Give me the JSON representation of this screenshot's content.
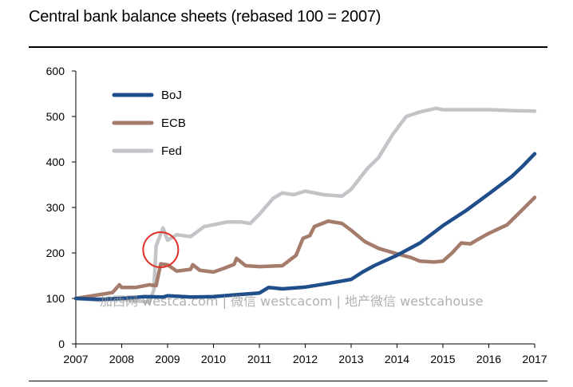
{
  "title": "Central bank balance sheets (rebased 100 = 2007)",
  "watermark": "加西网 westca.com | 微信 westcacom | 地产微信 westcahouse",
  "chart_data": {
    "type": "line",
    "title": "Central bank balance sheets (rebased 100 = 2007)",
    "xlabel": "",
    "ylabel": "",
    "xlim": [
      2007,
      2017
    ],
    "ylim": [
      0,
      600
    ],
    "yticks": [
      0,
      100,
      200,
      300,
      400,
      500,
      600
    ],
    "xticks": [
      "2007",
      "2008",
      "2009",
      "2010",
      "2011",
      "2012",
      "2013",
      "2014",
      "2015",
      "2016",
      "2017"
    ],
    "grid": false,
    "legend": "top-left",
    "annotation": {
      "type": "circle",
      "x": 2008.85,
      "y": 200,
      "color": "#e0312b"
    },
    "series": [
      {
        "name": "BoJ",
        "color": "#1f4e8a",
        "points": [
          [
            2007,
            100
          ],
          [
            2007.5,
            98
          ],
          [
            2008,
            100
          ],
          [
            2008.5,
            104
          ],
          [
            2008.9,
            103
          ],
          [
            2009,
            106
          ],
          [
            2009.5,
            103
          ],
          [
            2010,
            104
          ],
          [
            2010.5,
            108
          ],
          [
            2011,
            112
          ],
          [
            2011.2,
            124
          ],
          [
            2011.5,
            121
          ],
          [
            2012,
            125
          ],
          [
            2012.5,
            133
          ],
          [
            2013,
            142
          ],
          [
            2013.25,
            158
          ],
          [
            2013.5,
            172
          ],
          [
            2014,
            195
          ],
          [
            2014.5,
            222
          ],
          [
            2015,
            260
          ],
          [
            2015.5,
            293
          ],
          [
            2016,
            330
          ],
          [
            2016.5,
            368
          ],
          [
            2016.75,
            392
          ],
          [
            2017,
            418
          ]
        ]
      },
      {
        "name": "ECB",
        "color": "#a57b6c",
        "points": [
          [
            2007,
            100
          ],
          [
            2007.5,
            108
          ],
          [
            2007.8,
            113
          ],
          [
            2007.95,
            130
          ],
          [
            2008,
            124
          ],
          [
            2008.3,
            124
          ],
          [
            2008.6,
            130
          ],
          [
            2008.75,
            128
          ],
          [
            2008.85,
            176
          ],
          [
            2009,
            174
          ],
          [
            2009.2,
            160
          ],
          [
            2009.5,
            164
          ],
          [
            2009.55,
            174
          ],
          [
            2009.7,
            162
          ],
          [
            2010,
            158
          ],
          [
            2010.2,
            165
          ],
          [
            2010.45,
            175
          ],
          [
            2010.5,
            188
          ],
          [
            2010.7,
            172
          ],
          [
            2011,
            170
          ],
          [
            2011.5,
            172
          ],
          [
            2011.8,
            195
          ],
          [
            2011.95,
            232
          ],
          [
            2012.1,
            238
          ],
          [
            2012.2,
            258
          ],
          [
            2012.5,
            270
          ],
          [
            2012.8,
            265
          ],
          [
            2013,
            250
          ],
          [
            2013.3,
            225
          ],
          [
            2013.6,
            210
          ],
          [
            2014,
            198
          ],
          [
            2014.3,
            190
          ],
          [
            2014.5,
            182
          ],
          [
            2014.8,
            180
          ],
          [
            2015,
            182
          ],
          [
            2015.2,
            200
          ],
          [
            2015.4,
            222
          ],
          [
            2015.6,
            220
          ],
          [
            2015.8,
            232
          ],
          [
            2016,
            243
          ],
          [
            2016.4,
            262
          ],
          [
            2016.7,
            292
          ],
          [
            2017,
            322
          ]
        ]
      },
      {
        "name": "Fed",
        "color": "#c3c4c8",
        "points": [
          [
            2007,
            100
          ],
          [
            2007.5,
            96
          ],
          [
            2008,
            98
          ],
          [
            2008.6,
            92
          ],
          [
            2008.7,
            118
          ],
          [
            2008.75,
            215
          ],
          [
            2008.9,
            255
          ],
          [
            2009,
            228
          ],
          [
            2009.2,
            240
          ],
          [
            2009.5,
            236
          ],
          [
            2009.8,
            258
          ],
          [
            2010,
            262
          ],
          [
            2010.3,
            268
          ],
          [
            2010.6,
            268
          ],
          [
            2010.8,
            265
          ],
          [
            2011,
            285
          ],
          [
            2011.3,
            320
          ],
          [
            2011.5,
            332
          ],
          [
            2011.75,
            328
          ],
          [
            2012,
            336
          ],
          [
            2012.4,
            328
          ],
          [
            2012.8,
            325
          ],
          [
            2013,
            340
          ],
          [
            2013.35,
            385
          ],
          [
            2013.6,
            410
          ],
          [
            2013.9,
            460
          ],
          [
            2014.2,
            500
          ],
          [
            2014.5,
            510
          ],
          [
            2014.85,
            518
          ],
          [
            2015,
            515
          ],
          [
            2015.5,
            515
          ],
          [
            2016,
            515
          ],
          [
            2016.5,
            513
          ],
          [
            2017,
            512
          ]
        ]
      }
    ]
  }
}
